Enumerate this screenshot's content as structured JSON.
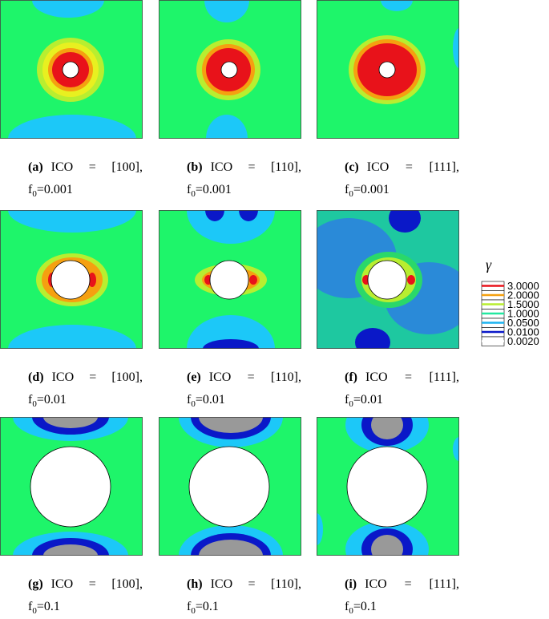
{
  "panels": [
    {
      "label": "(a)",
      "line1": "ICO = [100],",
      "f": "f",
      "sub": "0",
      "rest": "=0.001"
    },
    {
      "label": "(b)",
      "line1": "ICO = [110],",
      "f": "f",
      "sub": "0",
      "rest": "=0.001"
    },
    {
      "label": "(c)",
      "line1": "ICO = [111],",
      "f": "f",
      "sub": "0",
      "rest": "=0.001"
    },
    {
      "label": "(d)",
      "line1": "ICO = [100],",
      "f": "f",
      "sub": "0",
      "rest": "=0.01"
    },
    {
      "label": "(e)",
      "line1": "ICO = [110],",
      "f": "f",
      "sub": "0",
      "rest": "=0.01"
    },
    {
      "label": "(f)",
      "line1": "ICO = [111],",
      "f": "f",
      "sub": "0",
      "rest": "=0.01"
    },
    {
      "label": "(g)",
      "line1": "ICO = [100],",
      "f": "f",
      "sub": "0",
      "rest": "=0.1"
    },
    {
      "label": "(h)",
      "line1": "ICO = [110],",
      "f": "f",
      "sub": "0",
      "rest": "=0.1"
    },
    {
      "label": "(i)",
      "line1": "ICO = [111],",
      "f": "f",
      "sub": "0",
      "rest": "=0.1"
    }
  ],
  "legend": {
    "symbol": "γ",
    "levels": [
      "3.0000",
      "2.0000",
      "1.5000",
      "1.0000",
      "0.0500",
      "0.0100",
      "0.0020"
    ],
    "colors": [
      "#e8121a",
      "#f5a010",
      "#b8ee30",
      "#22e8a0",
      "#1cb4f0",
      "#0a18c8",
      "#ffffff"
    ]
  }
}
